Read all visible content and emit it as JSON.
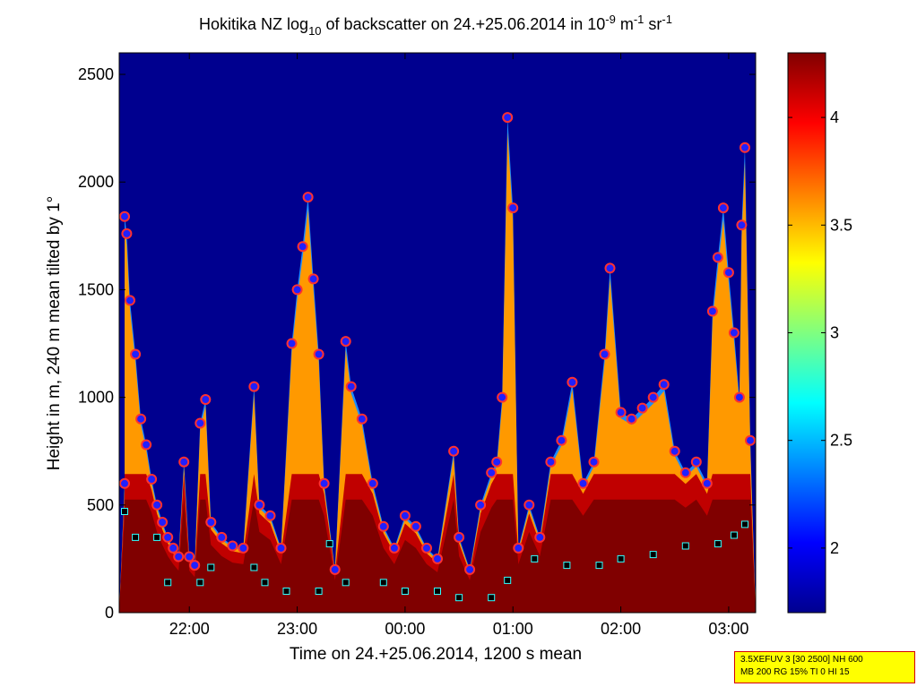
{
  "chart_data": {
    "type": "heatmap",
    "title": {
      "pre": "Hokitika NZ log",
      "sub": "10",
      "mid": " of backscatter on 24.+25.06.2014 in 10",
      "sup1": "-9",
      "m": " m",
      "sup2": "-1",
      "sr": " sr",
      "sup3": "-1"
    },
    "xlabel": "Time on 24.+25.06.2014, 1200 s mean",
    "ylabel": "Height in m, 240 m mean tilted by 1°",
    "xlim_hours": [
      21.35,
      27.25
    ],
    "ylim": [
      0,
      2600
    ],
    "x_ticks": [
      {
        "label": "22:00",
        "value": 22
      },
      {
        "label": "23:00",
        "value": 23
      },
      {
        "label": "00:00",
        "value": 24
      },
      {
        "label": "01:00",
        "value": 25
      },
      {
        "label": "02:00",
        "value": 26
      },
      {
        "label": "03:00",
        "value": 27
      }
    ],
    "y_ticks": [
      0,
      500,
      1000,
      1500,
      2000,
      2500
    ],
    "colorbar": {
      "colormap": "jet",
      "range": [
        1.7,
        4.3
      ],
      "ticks": [
        2,
        2.5,
        3,
        3.5,
        4
      ]
    },
    "cloud_base_points": [
      {
        "x": 21.4,
        "y": 600
      },
      {
        "x": 21.4,
        "y": 1840
      },
      {
        "x": 21.42,
        "y": 1760
      },
      {
        "x": 21.45,
        "y": 1450
      },
      {
        "x": 21.5,
        "y": 1200
      },
      {
        "x": 21.55,
        "y": 900
      },
      {
        "x": 21.6,
        "y": 780
      },
      {
        "x": 21.65,
        "y": 620
      },
      {
        "x": 21.7,
        "y": 500
      },
      {
        "x": 21.75,
        "y": 420
      },
      {
        "x": 21.8,
        "y": 350
      },
      {
        "x": 21.85,
        "y": 300
      },
      {
        "x": 21.9,
        "y": 260
      },
      {
        "x": 21.95,
        "y": 700
      },
      {
        "x": 22.0,
        "y": 260
      },
      {
        "x": 22.05,
        "y": 220
      },
      {
        "x": 22.1,
        "y": 880
      },
      {
        "x": 22.15,
        "y": 990
      },
      {
        "x": 22.2,
        "y": 420
      },
      {
        "x": 22.3,
        "y": 350
      },
      {
        "x": 22.4,
        "y": 310
      },
      {
        "x": 22.5,
        "y": 300
      },
      {
        "x": 22.6,
        "y": 1050
      },
      {
        "x": 22.65,
        "y": 500
      },
      {
        "x": 22.75,
        "y": 450
      },
      {
        "x": 22.85,
        "y": 300
      },
      {
        "x": 22.95,
        "y": 1250
      },
      {
        "x": 23.0,
        "y": 1500
      },
      {
        "x": 23.05,
        "y": 1700
      },
      {
        "x": 23.1,
        "y": 1930
      },
      {
        "x": 23.15,
        "y": 1550
      },
      {
        "x": 23.2,
        "y": 1200
      },
      {
        "x": 23.25,
        "y": 600
      },
      {
        "x": 23.35,
        "y": 200
      },
      {
        "x": 23.45,
        "y": 1260
      },
      {
        "x": 23.5,
        "y": 1050
      },
      {
        "x": 23.6,
        "y": 900
      },
      {
        "x": 23.7,
        "y": 600
      },
      {
        "x": 23.8,
        "y": 400
      },
      {
        "x": 23.9,
        "y": 300
      },
      {
        "x": 24.0,
        "y": 450
      },
      {
        "x": 24.1,
        "y": 400
      },
      {
        "x": 24.2,
        "y": 300
      },
      {
        "x": 24.3,
        "y": 250
      },
      {
        "x": 24.45,
        "y": 750
      },
      {
        "x": 24.5,
        "y": 350
      },
      {
        "x": 24.6,
        "y": 200
      },
      {
        "x": 24.7,
        "y": 500
      },
      {
        "x": 24.8,
        "y": 650
      },
      {
        "x": 24.85,
        "y": 700
      },
      {
        "x": 24.9,
        "y": 1000
      },
      {
        "x": 24.95,
        "y": 2300
      },
      {
        "x": 25.0,
        "y": 1880
      },
      {
        "x": 25.05,
        "y": 300
      },
      {
        "x": 25.15,
        "y": 500
      },
      {
        "x": 25.25,
        "y": 350
      },
      {
        "x": 25.35,
        "y": 700
      },
      {
        "x": 25.45,
        "y": 800
      },
      {
        "x": 25.55,
        "y": 1070
      },
      {
        "x": 25.65,
        "y": 600
      },
      {
        "x": 25.75,
        "y": 700
      },
      {
        "x": 25.85,
        "y": 1200
      },
      {
        "x": 25.9,
        "y": 1600
      },
      {
        "x": 26.0,
        "y": 930
      },
      {
        "x": 26.1,
        "y": 900
      },
      {
        "x": 26.2,
        "y": 950
      },
      {
        "x": 26.3,
        "y": 1000
      },
      {
        "x": 26.4,
        "y": 1060
      },
      {
        "x": 26.5,
        "y": 750
      },
      {
        "x": 26.6,
        "y": 650
      },
      {
        "x": 26.7,
        "y": 700
      },
      {
        "x": 26.8,
        "y": 600
      },
      {
        "x": 26.85,
        "y": 1400
      },
      {
        "x": 26.9,
        "y": 1650
      },
      {
        "x": 26.95,
        "y": 1880
      },
      {
        "x": 27.0,
        "y": 1580
      },
      {
        "x": 27.05,
        "y": 1300
      },
      {
        "x": 27.1,
        "y": 1000
      },
      {
        "x": 27.12,
        "y": 1800
      },
      {
        "x": 27.15,
        "y": 2160
      },
      {
        "x": 27.2,
        "y": 800
      }
    ],
    "mixing_layer_points": [
      {
        "x": 21.4,
        "y": 470
      },
      {
        "x": 21.5,
        "y": 350
      },
      {
        "x": 21.7,
        "y": 350
      },
      {
        "x": 21.8,
        "y": 140
      },
      {
        "x": 22.1,
        "y": 140
      },
      {
        "x": 22.2,
        "y": 210
      },
      {
        "x": 22.6,
        "y": 210
      },
      {
        "x": 22.7,
        "y": 140
      },
      {
        "x": 22.9,
        "y": 100
      },
      {
        "x": 23.2,
        "y": 100
      },
      {
        "x": 23.3,
        "y": 320
      },
      {
        "x": 23.45,
        "y": 140
      },
      {
        "x": 23.8,
        "y": 140
      },
      {
        "x": 24.0,
        "y": 100
      },
      {
        "x": 24.3,
        "y": 100
      },
      {
        "x": 24.5,
        "y": 70
      },
      {
        "x": 24.8,
        "y": 70
      },
      {
        "x": 24.95,
        "y": 150
      },
      {
        "x": 25.05,
        "y": 300
      },
      {
        "x": 25.2,
        "y": 250
      },
      {
        "x": 25.5,
        "y": 220
      },
      {
        "x": 25.8,
        "y": 220
      },
      {
        "x": 26.0,
        "y": 250
      },
      {
        "x": 26.3,
        "y": 270
      },
      {
        "x": 26.6,
        "y": 310
      },
      {
        "x": 26.9,
        "y": 320
      },
      {
        "x": 27.05,
        "y": 360
      },
      {
        "x": 27.15,
        "y": 410
      }
    ]
  },
  "infobox": {
    "line1": "3.5XEFUV 3 [30 2500] NH 600",
    "line2": "MB 200 RG 15% TI 0 HI 15"
  }
}
